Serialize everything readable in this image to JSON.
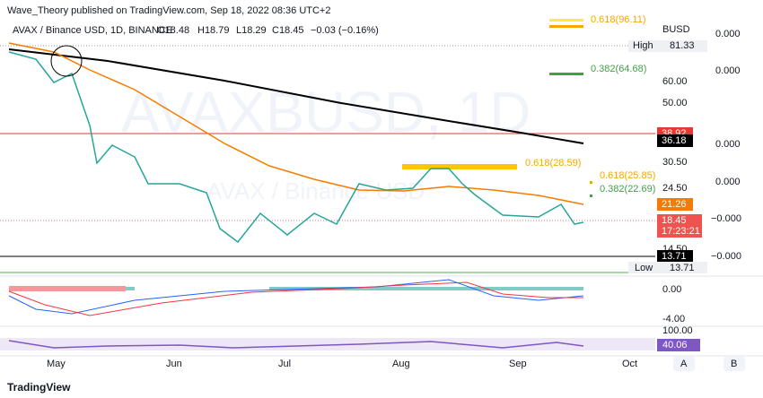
{
  "header": {
    "publisher": "Wave_Theory published on TradingView.com, Sep 18, 2022 08:36 UTC+2"
  },
  "symbol": {
    "name": "AVAX / Binance USD, 1D, BINANCE",
    "open": "O18.48",
    "high": "H18.79",
    "low": "L18.29",
    "close": "C18.45",
    "change": "−0.03 (−0.16%)"
  },
  "watermark": {
    "ticker": "AVAXBUSD, 1D",
    "description": "AVAX / Binance USD"
  },
  "fib_labels": [
    "0.618(96.11)",
    "0.382(64.68)",
    "0.618(28.59)",
    "0.618(25.85)",
    "0.382(22.69)"
  ],
  "price_axis": {
    "currency": "BUSD",
    "high_label": "High",
    "high": "81.33",
    "low_label": "Low",
    "low": "13.71",
    "ticks": [
      "60.00",
      "50.00",
      "30.50",
      "24.50",
      "14.50"
    ],
    "badges": [
      "38.92",
      "36.18",
      "21.26",
      "18.45",
      "13.71"
    ],
    "countdown": "17:23:21"
  },
  "side_axis": [
    "0.000",
    "0.000",
    "0.000",
    "0.000",
    "−0.000",
    "−0.000"
  ],
  "macd_axis": [
    "0.00",
    "-4.00"
  ],
  "rsi_axis": [
    "100.00",
    "40.06"
  ],
  "x_axis": [
    "May",
    "Jun",
    "Jul",
    "Aug",
    "Sep",
    "Oct"
  ],
  "buttons": [
    "A",
    "B"
  ],
  "footer": "TradingView"
}
